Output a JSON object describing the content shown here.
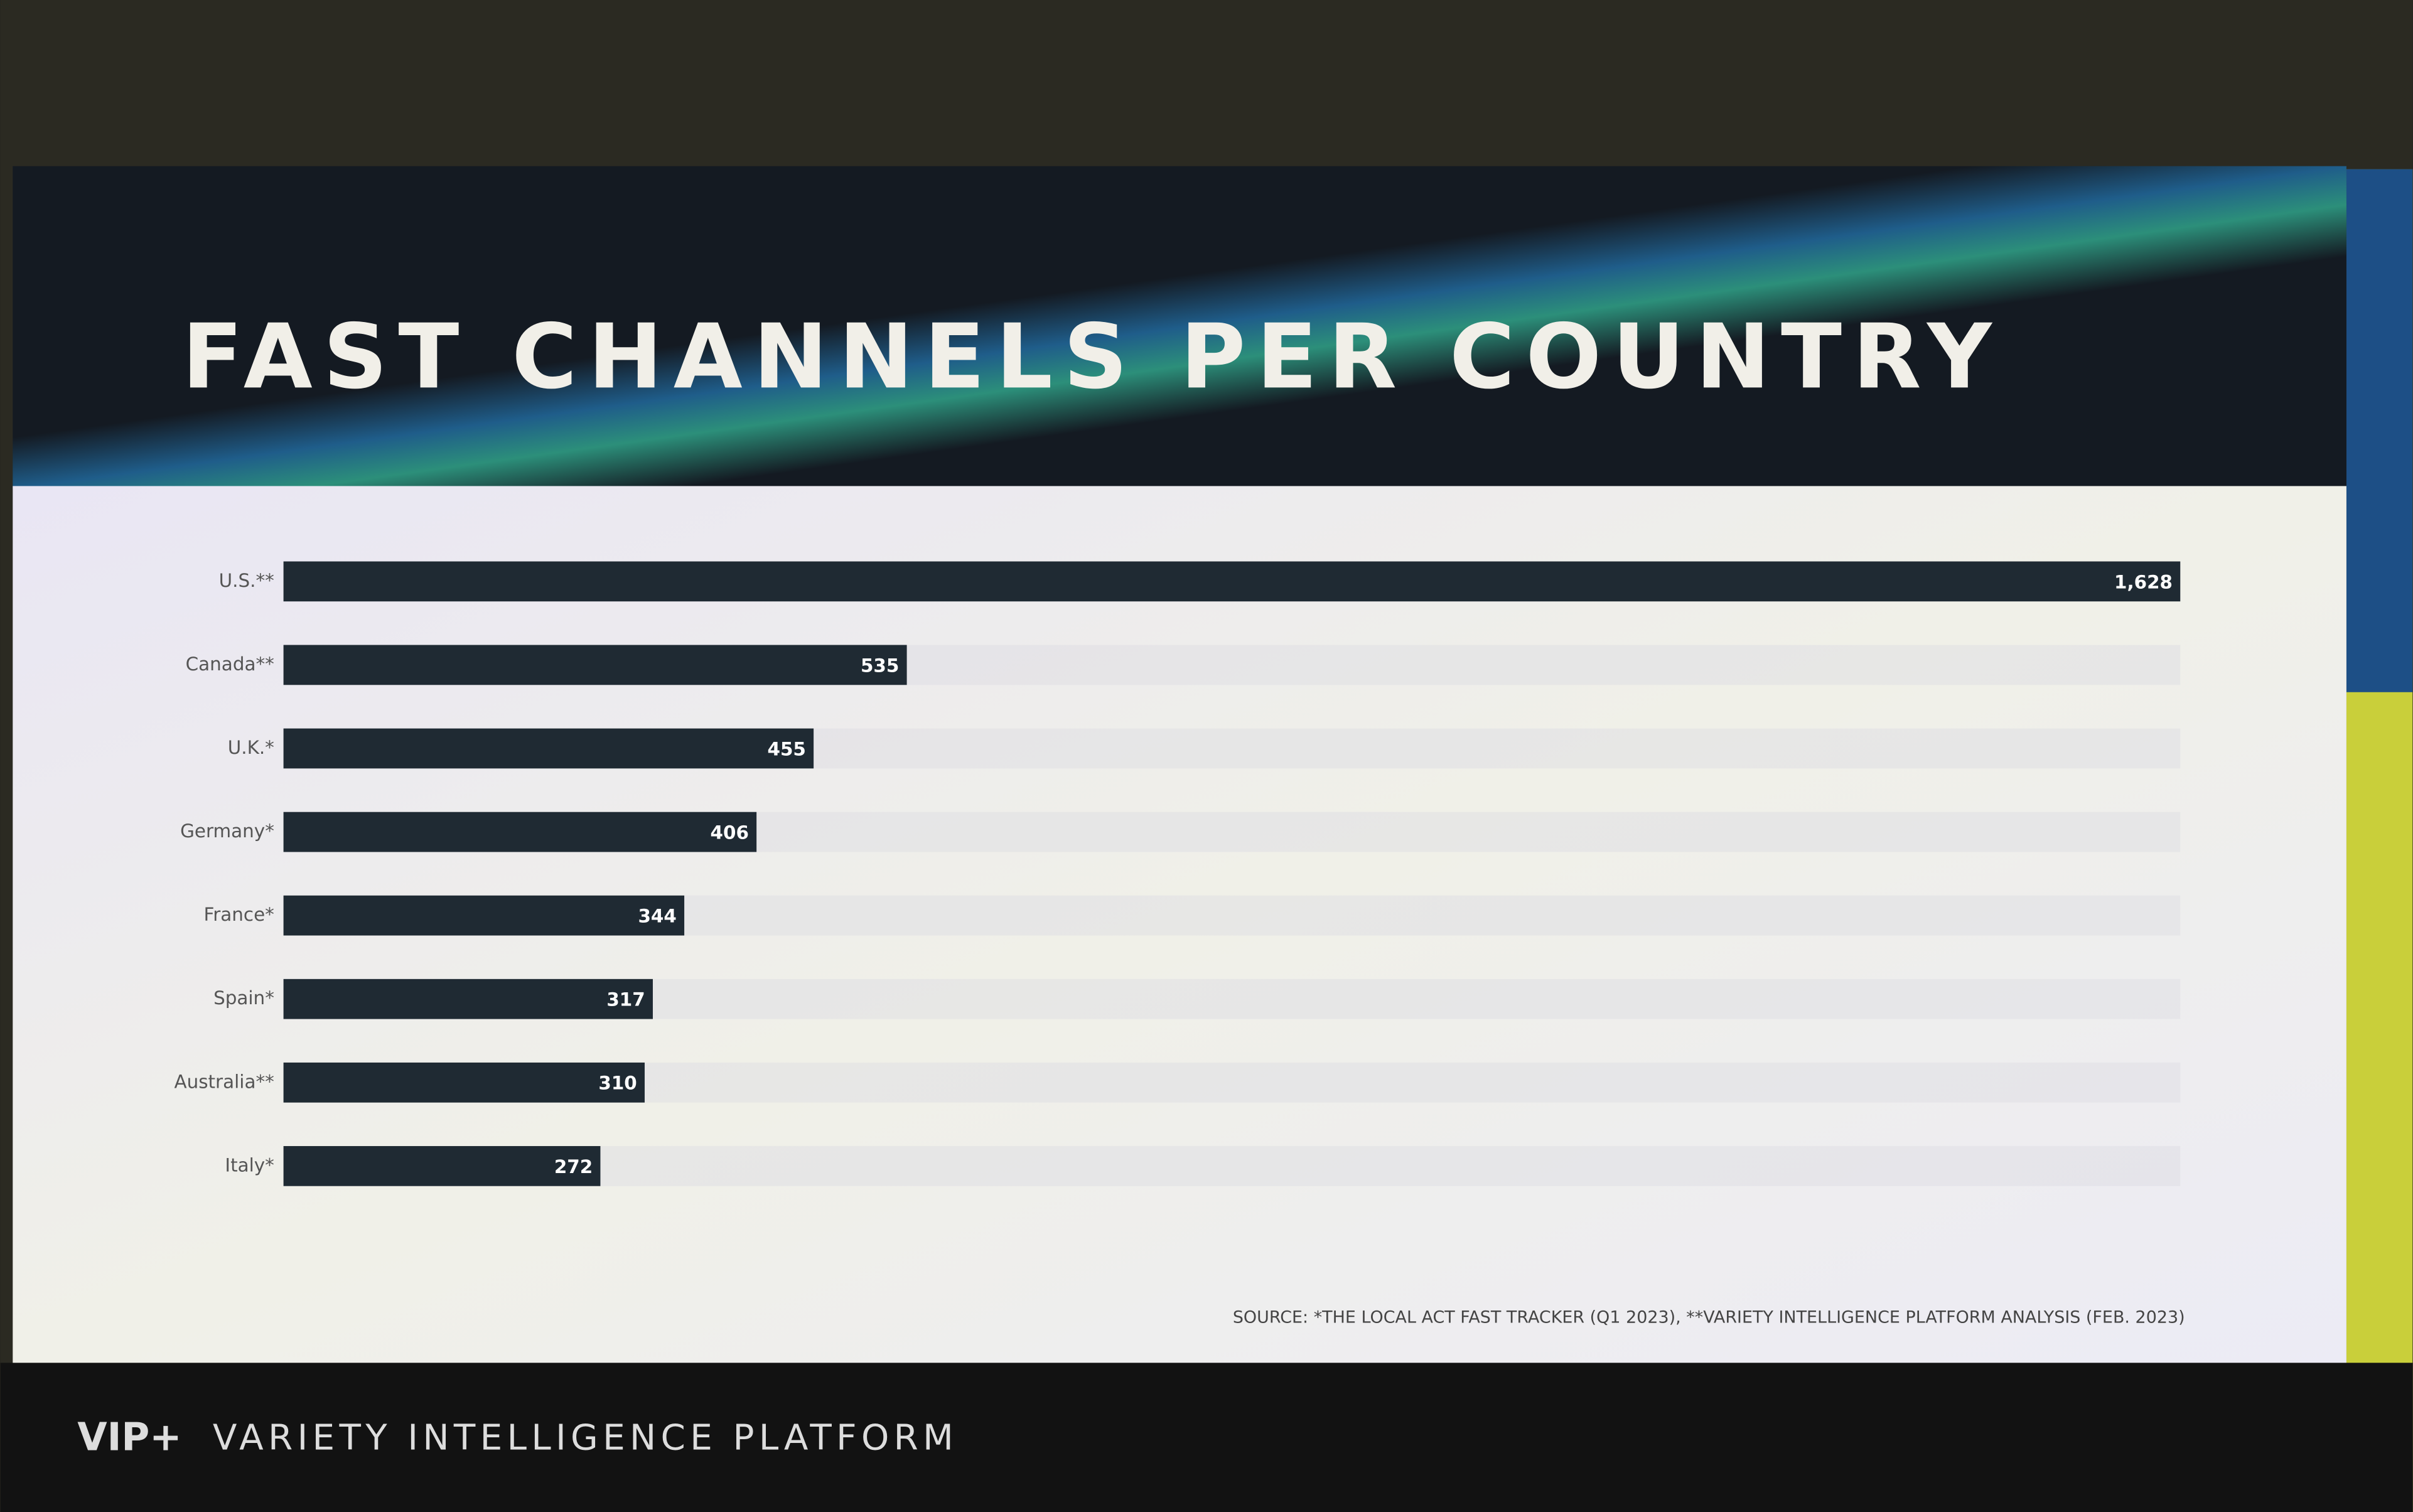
{
  "chart_data": {
    "type": "bar",
    "orientation": "horizontal",
    "title": "FAST CHANNELS PER COUNTRY",
    "categories": [
      "U.S.**",
      "Canada**",
      "U.K.*",
      "Germany*",
      "France*",
      "Spain*",
      "Australia**",
      "Italy*"
    ],
    "values": [
      1628,
      535,
      455,
      406,
      344,
      317,
      310,
      272
    ],
    "value_labels": [
      "1,628",
      "535",
      "455",
      "406",
      "344",
      "317",
      "310",
      "272"
    ],
    "color": "#1f2a33",
    "xlim": [
      0,
      1628
    ],
    "source": "SOURCE: *THE LOCAL ACT FAST TRACKER (Q1 2023), **VARIETY INTELLIGENCE PLATFORM ANALYSIS (FEB. 2023)"
  },
  "footer": {
    "logo": "VIP+",
    "text": "VARIETY INTELLIGENCE PLATFORM"
  }
}
